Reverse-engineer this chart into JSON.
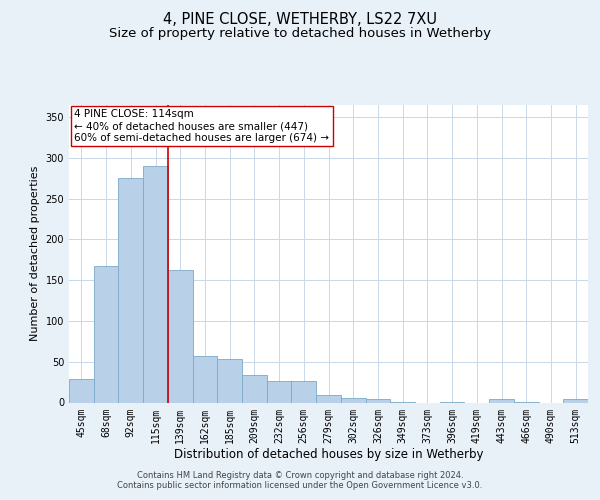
{
  "title": "4, PINE CLOSE, WETHERBY, LS22 7XU",
  "subtitle": "Size of property relative to detached houses in Wetherby",
  "xlabel": "Distribution of detached houses by size in Wetherby",
  "ylabel": "Number of detached properties",
  "categories": [
    "45sqm",
    "68sqm",
    "92sqm",
    "115sqm",
    "139sqm",
    "162sqm",
    "185sqm",
    "209sqm",
    "232sqm",
    "256sqm",
    "279sqm",
    "302sqm",
    "326sqm",
    "349sqm",
    "373sqm",
    "396sqm",
    "419sqm",
    "443sqm",
    "466sqm",
    "490sqm",
    "513sqm"
  ],
  "values": [
    29,
    168,
    275,
    290,
    162,
    57,
    53,
    34,
    26,
    26,
    9,
    5,
    4,
    1,
    0,
    1,
    0,
    4,
    1,
    0,
    4
  ],
  "bar_color": "#b8d0e8",
  "bar_edge_color": "#7aaac8",
  "vline_x_index": 3,
  "vline_color": "#cc0000",
  "annotation_text": "4 PINE CLOSE: 114sqm\n← 40% of detached houses are smaller (447)\n60% of semi-detached houses are larger (674) →",
  "annotation_box_color": "#ffffff",
  "annotation_box_edge_color": "#cc0000",
  "ylim": [
    0,
    365
  ],
  "yticks": [
    0,
    50,
    100,
    150,
    200,
    250,
    300,
    350
  ],
  "bg_color": "#e8f0f8",
  "plot_bg_color": "#ffffff",
  "grid_color": "#c8d8e8",
  "footer_line1": "Contains HM Land Registry data © Crown copyright and database right 2024.",
  "footer_line2": "Contains public sector information licensed under the Open Government Licence v3.0.",
  "title_fontsize": 10.5,
  "subtitle_fontsize": 9.5,
  "xlabel_fontsize": 8.5,
  "ylabel_fontsize": 8,
  "tick_fontsize": 7,
  "annotation_fontsize": 7.5,
  "footer_fontsize": 6
}
